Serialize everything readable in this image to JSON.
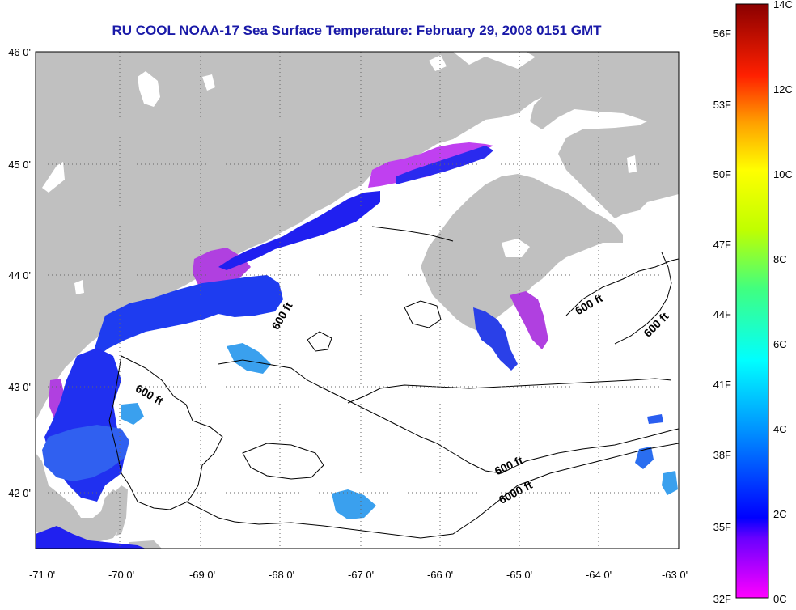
{
  "title": "RU COOL  NOAA-17  Sea Surface Temperature:  February 29, 2008 0151 GMT",
  "lat_labels": [
    "46 0'",
    "45 0'",
    "44 0'",
    "43 0'",
    "42 0'"
  ],
  "lon_labels": [
    "-71 0'",
    "-70 0'",
    "-69 0'",
    "-68 0'",
    "-67 0'",
    "-66 0'",
    "-65 0'",
    "-64 0'",
    "-63 0'"
  ],
  "depth_labels": [
    "600 ft",
    "600 ft",
    "600 ft",
    "600 ft",
    "600 ft",
    "6000 ft"
  ],
  "colorbar": {
    "fahrenheit": [
      "56F",
      "53F",
      "50F",
      "47F",
      "44F",
      "41F",
      "38F",
      "35F",
      "32F"
    ],
    "celsius": [
      "14C",
      "12C",
      "10C",
      "8C",
      "6C",
      "4C",
      "2C",
      "0C"
    ]
  },
  "colors": {
    "land": "#c0c0c0",
    "title": "#1a1aa8",
    "sst_cold": "#ff00ff",
    "sst_mid": "#0000ff",
    "sst_warm": "#00c0ff"
  }
}
